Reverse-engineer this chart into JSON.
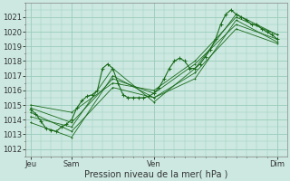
{
  "title": "",
  "xlabel": "Pression niveau de la mer( hPa )",
  "ylabel": "",
  "bg_color": "#cce8e0",
  "grid_color": "#99ccbb",
  "line_color": "#1a6b1a",
  "marker_color": "#1a6b1a",
  "ylim": [
    1011.5,
    1021.8
  ],
  "xlim": [
    -2,
    100
  ],
  "yticks": [
    1012,
    1013,
    1014,
    1015,
    1016,
    1017,
    1018,
    1019,
    1020,
    1021
  ],
  "xtick_positions": [
    0,
    16,
    48,
    96
  ],
  "xtick_labels": [
    "Jeu",
    "Sam",
    "Ven",
    "Dim"
  ],
  "series": [
    [
      0,
      1014.7,
      2,
      1014.4,
      4,
      1013.9,
      6,
      1013.4,
      8,
      1013.3,
      10,
      1013.2,
      12,
      1013.5,
      14,
      1013.7,
      16,
      1014.0,
      18,
      1014.8,
      20,
      1015.3,
      22,
      1015.6,
      24,
      1015.7,
      26,
      1016.0,
      28,
      1017.5,
      30,
      1017.8,
      32,
      1017.5,
      34,
      1016.5,
      36,
      1015.7,
      38,
      1015.5,
      40,
      1015.5,
      42,
      1015.5,
      44,
      1015.5,
      46,
      1015.6,
      48,
      1015.8,
      50,
      1016.2,
      52,
      1016.8,
      54,
      1017.5,
      56,
      1018.0,
      58,
      1018.2,
      60,
      1018.0,
      62,
      1017.5,
      64,
      1017.5,
      66,
      1017.8,
      68,
      1018.3,
      70,
      1018.8,
      72,
      1019.5,
      74,
      1020.5,
      76,
      1021.2,
      78,
      1021.5,
      80,
      1021.2,
      82,
      1021.0,
      84,
      1020.8,
      86,
      1020.5,
      88,
      1020.5,
      90,
      1020.2,
      92,
      1020.0,
      94,
      1019.8,
      96,
      1019.5
    ],
    [
      0,
      1014.2,
      16,
      1013.5,
      32,
      1017.5,
      48,
      1015.2,
      64,
      1017.5,
      80,
      1021.2,
      96,
      1019.8
    ],
    [
      0,
      1013.8,
      16,
      1012.8,
      32,
      1017.0,
      48,
      1015.5,
      64,
      1016.8,
      80,
      1020.8,
      96,
      1019.3
    ],
    [
      0,
      1015.0,
      16,
      1014.5,
      32,
      1016.5,
      48,
      1016.0,
      64,
      1018.0,
      80,
      1021.0,
      96,
      1019.8
    ],
    [
      0,
      1014.8,
      16,
      1013.8,
      32,
      1016.8,
      48,
      1015.8,
      64,
      1017.8,
      80,
      1020.5,
      96,
      1019.5
    ],
    [
      0,
      1014.5,
      16,
      1013.2,
      32,
      1016.2,
      48,
      1015.5,
      64,
      1017.2,
      80,
      1020.2,
      96,
      1019.2
    ]
  ]
}
